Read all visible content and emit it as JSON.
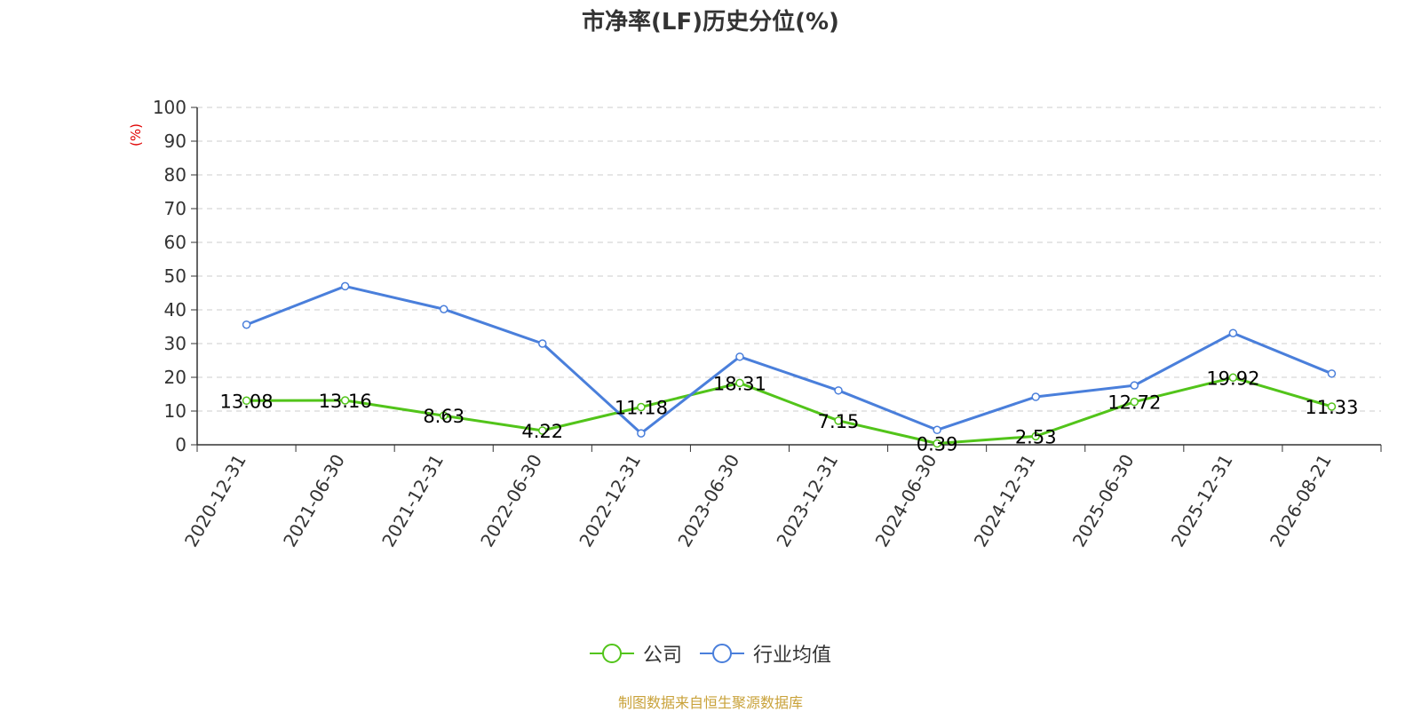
{
  "chart_data": {
    "type": "line",
    "title": "市净率(LF)历史分位(%)",
    "ylabel": "(%)",
    "ylim": [
      0,
      100
    ],
    "yticks": [
      0,
      10,
      20,
      30,
      40,
      50,
      60,
      70,
      80,
      90,
      100
    ],
    "categories": [
      "2020-12-31",
      "2021-06-30",
      "2021-12-31",
      "2022-06-30",
      "2022-12-31",
      "2023-06-30",
      "2023-12-31",
      "2024-06-30",
      "2024-12-31",
      "2025-06-30",
      "2025-12-31",
      "2026-08-21"
    ],
    "grid": true,
    "legend_position": "bottom",
    "series": [
      {
        "name": "公司",
        "color": "#52c41a",
        "values": [
          13.08,
          13.16,
          8.63,
          4.22,
          11.18,
          18.31,
          7.15,
          0.39,
          2.53,
          12.72,
          19.92,
          11.33
        ],
        "labels": [
          "13.08",
          "13.16",
          "8.63",
          "4.22",
          "11.18",
          "18.31",
          "7.15",
          "0.39",
          "2.53",
          "12.72",
          "19.92",
          "11.33"
        ]
      },
      {
        "name": "行业均值",
        "color": "#4a7fdb",
        "values": [
          35.6,
          47.0,
          40.2,
          30.0,
          3.4,
          26.1,
          16.1,
          4.4,
          14.2,
          17.6,
          33.1,
          21.1
        ]
      }
    ]
  },
  "source_text": "制图数据来自恒生聚源数据库"
}
